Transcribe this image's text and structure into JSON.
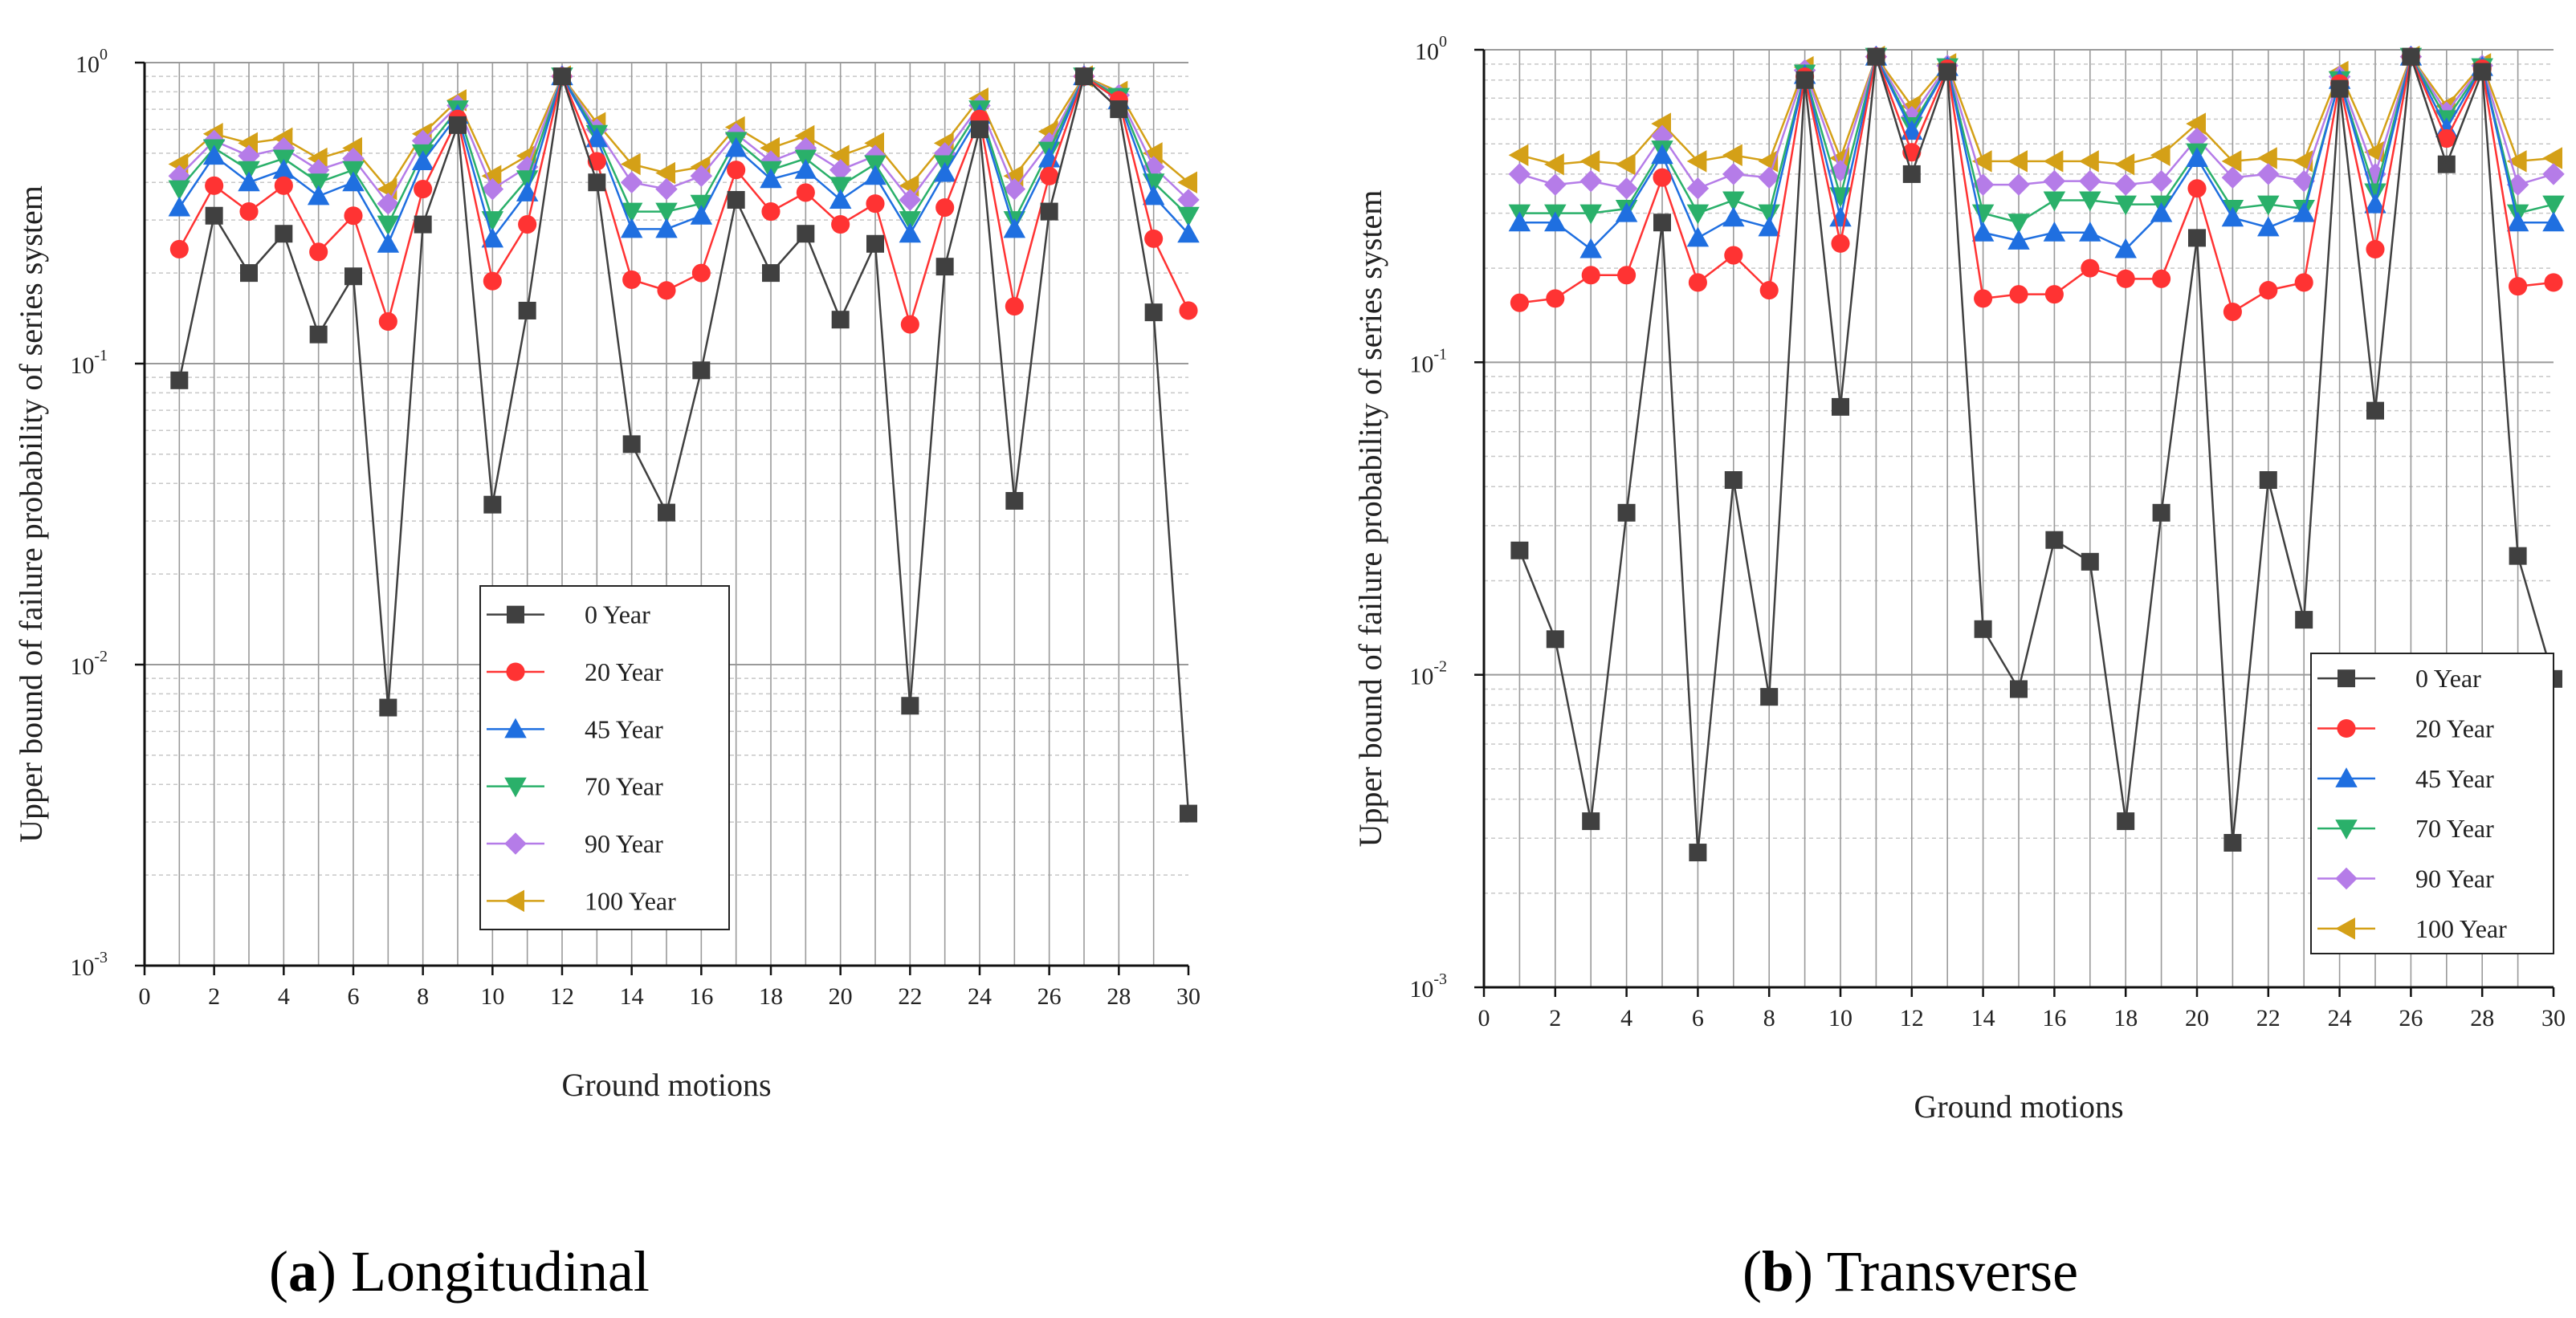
{
  "figure": {
    "captions": [
      {
        "letter": "a",
        "text": " Longitudinal"
      },
      {
        "letter": "b",
        "text": " Transverse"
      }
    ]
  },
  "chart_data": [
    {
      "type": "line",
      "title": "(a) Longitudinal",
      "xlabel": "Ground motions",
      "ylabel": "Upper bound of failure probability of series system",
      "xlim": [
        0,
        30
      ],
      "ylim": [
        0.001,
        1
      ],
      "yscale": "log",
      "xticks": [
        0,
        2,
        4,
        6,
        8,
        10,
        12,
        14,
        16,
        18,
        20,
        22,
        24,
        26,
        28,
        30
      ],
      "yticks": [
        {
          "base": "10",
          "exp": "-3",
          "value": 0.001
        },
        {
          "base": "10",
          "exp": "-2",
          "value": 0.01
        },
        {
          "base": "10",
          "exp": "-1",
          "value": 0.1
        },
        {
          "base": "10",
          "exp": "0",
          "value": 1
        }
      ],
      "grid": true,
      "legend_position": "center",
      "x": [
        1,
        2,
        3,
        4,
        5,
        6,
        7,
        8,
        9,
        10,
        11,
        12,
        13,
        14,
        15,
        16,
        17,
        18,
        19,
        20,
        21,
        22,
        23,
        24,
        25,
        26,
        27,
        28,
        29,
        30
      ],
      "series": [
        {
          "name": "0 Year",
          "color": "#404040",
          "marker": "square",
          "values": [
            0.088,
            0.31,
            0.2,
            0.27,
            0.125,
            0.195,
            0.0072,
            0.29,
            0.62,
            0.034,
            0.15,
            0.9,
            0.4,
            0.054,
            0.032,
            0.095,
            0.35,
            0.2,
            0.27,
            0.14,
            0.25,
            0.0073,
            0.21,
            0.6,
            0.035,
            0.32,
            0.9,
            0.7,
            0.148,
            0.0032
          ]
        },
        {
          "name": "20 Year",
          "color": "#ff3333",
          "marker": "circle",
          "values": [
            0.24,
            0.39,
            0.32,
            0.39,
            0.235,
            0.31,
            0.138,
            0.38,
            0.65,
            0.188,
            0.29,
            0.9,
            0.47,
            0.19,
            0.175,
            0.2,
            0.44,
            0.32,
            0.37,
            0.29,
            0.34,
            0.135,
            0.33,
            0.65,
            0.155,
            0.42,
            0.9,
            0.75,
            0.26,
            0.15
          ]
        },
        {
          "name": "45 Year",
          "color": "#1f6fe0",
          "marker": "triangle-up",
          "values": [
            0.33,
            0.49,
            0.4,
            0.44,
            0.36,
            0.4,
            0.25,
            0.47,
            0.67,
            0.26,
            0.37,
            0.9,
            0.56,
            0.28,
            0.28,
            0.31,
            0.52,
            0.41,
            0.44,
            0.35,
            0.42,
            0.27,
            0.43,
            0.67,
            0.28,
            0.48,
            0.9,
            0.75,
            0.36,
            0.27
          ]
        },
        {
          "name": "70 Year",
          "color": "#2ab06a",
          "marker": "triangle-down",
          "values": [
            0.38,
            0.52,
            0.44,
            0.48,
            0.4,
            0.44,
            0.29,
            0.5,
            0.7,
            0.3,
            0.41,
            0.9,
            0.58,
            0.32,
            0.32,
            0.34,
            0.55,
            0.44,
            0.48,
            0.39,
            0.46,
            0.3,
            0.46,
            0.7,
            0.3,
            0.51,
            0.9,
            0.77,
            0.4,
            0.31
          ]
        },
        {
          "name": "90 Year",
          "color": "#b57ce8",
          "marker": "diamond",
          "values": [
            0.42,
            0.55,
            0.49,
            0.52,
            0.44,
            0.48,
            0.34,
            0.55,
            0.72,
            0.38,
            0.45,
            0.9,
            0.6,
            0.4,
            0.38,
            0.42,
            0.58,
            0.47,
            0.52,
            0.44,
            0.49,
            0.35,
            0.5,
            0.72,
            0.38,
            0.54,
            0.9,
            0.78,
            0.45,
            0.35
          ]
        },
        {
          "name": "100 Year",
          "color": "#d4a017",
          "marker": "triangle-left",
          "values": [
            0.46,
            0.58,
            0.54,
            0.56,
            0.48,
            0.52,
            0.38,
            0.58,
            0.75,
            0.42,
            0.49,
            0.9,
            0.63,
            0.46,
            0.43,
            0.45,
            0.61,
            0.52,
            0.57,
            0.49,
            0.54,
            0.39,
            0.54,
            0.76,
            0.42,
            0.59,
            0.9,
            0.8,
            0.5,
            0.4
          ]
        }
      ]
    },
    {
      "type": "line",
      "title": "(b) Transverse",
      "xlabel": "Ground motions",
      "ylabel": "Upper bound of failure probability of series system",
      "xlim": [
        0,
        30
      ],
      "ylim": [
        0.001,
        1
      ],
      "yscale": "log",
      "xticks": [
        0,
        2,
        4,
        6,
        8,
        10,
        12,
        14,
        16,
        18,
        20,
        22,
        24,
        26,
        28,
        30
      ],
      "yticks": [
        {
          "base": "10",
          "exp": "-3",
          "value": 0.001
        },
        {
          "base": "10",
          "exp": "-2",
          "value": 0.01
        },
        {
          "base": "10",
          "exp": "-1",
          "value": 0.1
        },
        {
          "base": "10",
          "exp": "0",
          "value": 1
        }
      ],
      "grid": true,
      "legend_position": "bottom-right",
      "x": [
        1,
        2,
        3,
        4,
        5,
        6,
        7,
        8,
        9,
        10,
        11,
        12,
        13,
        14,
        15,
        16,
        17,
        18,
        19,
        20,
        21,
        22,
        23,
        24,
        25,
        26,
        27,
        28,
        29,
        30
      ],
      "series": [
        {
          "name": "0 Year",
          "color": "#404040",
          "marker": "square",
          "values": [
            0.025,
            0.013,
            0.0034,
            0.033,
            0.28,
            0.0027,
            0.042,
            0.0085,
            0.8,
            0.072,
            0.95,
            0.4,
            0.85,
            0.014,
            0.009,
            0.027,
            0.023,
            0.0034,
            0.033,
            0.25,
            0.0029,
            0.042,
            0.015,
            0.75,
            0.07,
            0.95,
            0.43,
            0.85,
            0.024,
            0.0097
          ]
        },
        {
          "name": "20 Year",
          "color": "#ff3333",
          "marker": "circle",
          "values": [
            0.155,
            0.16,
            0.19,
            0.19,
            0.39,
            0.18,
            0.22,
            0.17,
            0.82,
            0.24,
            0.95,
            0.47,
            0.87,
            0.16,
            0.165,
            0.165,
            0.2,
            0.185,
            0.185,
            0.36,
            0.145,
            0.17,
            0.18,
            0.78,
            0.23,
            0.95,
            0.52,
            0.87,
            0.175,
            0.18
          ]
        },
        {
          "name": "45 Year",
          "color": "#1f6fe0",
          "marker": "triangle-up",
          "values": [
            0.28,
            0.28,
            0.23,
            0.3,
            0.46,
            0.25,
            0.29,
            0.27,
            0.83,
            0.29,
            0.95,
            0.55,
            0.88,
            0.26,
            0.245,
            0.26,
            0.26,
            0.23,
            0.3,
            0.45,
            0.29,
            0.27,
            0.3,
            0.8,
            0.32,
            0.95,
            0.56,
            0.88,
            0.28,
            0.28
          ]
        },
        {
          "name": "70 Year",
          "color": "#2ab06a",
          "marker": "triangle-down",
          "values": [
            0.3,
            0.3,
            0.3,
            0.31,
            0.48,
            0.3,
            0.33,
            0.3,
            0.84,
            0.34,
            0.95,
            0.57,
            0.88,
            0.3,
            0.28,
            0.33,
            0.33,
            0.32,
            0.32,
            0.47,
            0.31,
            0.32,
            0.31,
            0.8,
            0.35,
            0.95,
            0.6,
            0.88,
            0.3,
            0.32
          ]
        },
        {
          "name": "90 Year",
          "color": "#b57ce8",
          "marker": "diamond",
          "values": [
            0.4,
            0.37,
            0.38,
            0.36,
            0.53,
            0.36,
            0.4,
            0.39,
            0.86,
            0.41,
            0.95,
            0.61,
            0.89,
            0.37,
            0.37,
            0.38,
            0.38,
            0.37,
            0.38,
            0.52,
            0.39,
            0.4,
            0.38,
            0.82,
            0.4,
            0.95,
            0.63,
            0.89,
            0.37,
            0.4
          ]
        },
        {
          "name": "100 Year",
          "color": "#d4a017",
          "marker": "triangle-left",
          "values": [
            0.46,
            0.43,
            0.44,
            0.43,
            0.58,
            0.44,
            0.46,
            0.44,
            0.88,
            0.45,
            0.95,
            0.66,
            0.9,
            0.44,
            0.44,
            0.44,
            0.44,
            0.43,
            0.46,
            0.58,
            0.44,
            0.45,
            0.44,
            0.85,
            0.47,
            0.95,
            0.66,
            0.9,
            0.44,
            0.45
          ]
        }
      ]
    }
  ]
}
